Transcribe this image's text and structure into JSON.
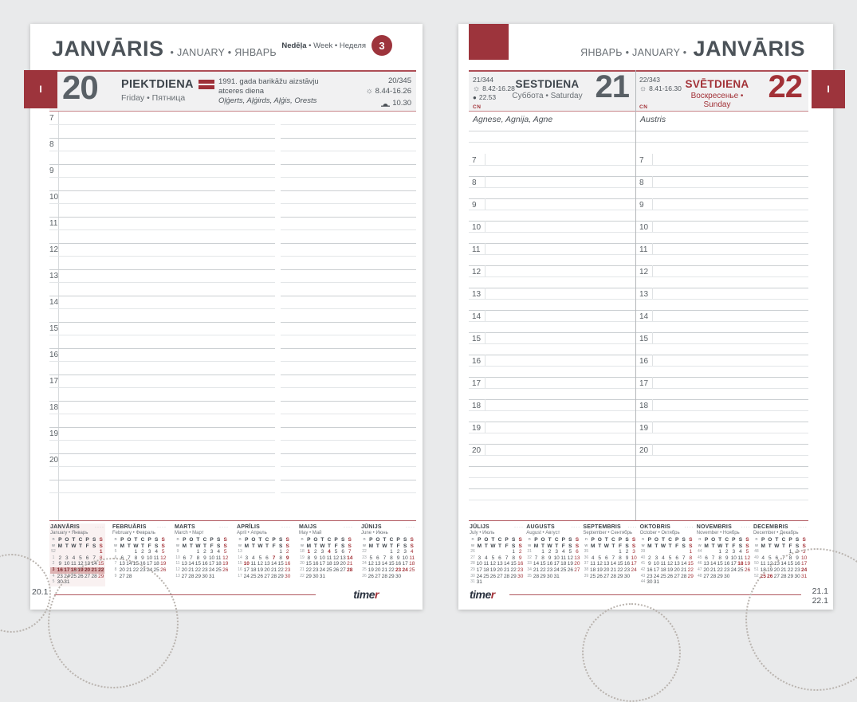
{
  "colors": {
    "accent": "#9d343c",
    "red_text": "#a23137",
    "band_bg": "#f1f1f2",
    "canvas_bg": "#e9eaeb"
  },
  "logo": {
    "main": "time",
    "accent": "r"
  },
  "week_header": {
    "lv": "Nedēļa",
    "en": "Week",
    "ru": "Неделя",
    "sep": "•",
    "number": "3"
  },
  "hours": [
    "7",
    "8",
    "9",
    "10",
    "11",
    "12",
    "13",
    "14",
    "15",
    "16",
    "17",
    "18",
    "19",
    "20"
  ],
  "left_page": {
    "tab": "I",
    "header": {
      "title": "JANVĀRIS",
      "subtitle": "• JANUARY • ЯНВАРЬ"
    },
    "day": {
      "number": "20",
      "name": "PIEKTDIENA",
      "name_sub": "Friday • Пятница",
      "holiday": "1991. gada barikāžu aizstāvju atceres diena",
      "namedays": "Oļģerts, Aļģirds, Aļģis, Orests",
      "day_of_year": "20/345",
      "sun": "8.44-16.26",
      "moon": "10.30"
    },
    "page_number": "20.1"
  },
  "right_page": {
    "tab": "I",
    "header": {
      "prefix": "ЯНВАРЬ • JANUARY •",
      "title": "JANVĀRIS"
    },
    "columns": [
      {
        "day_of_year": "21/344",
        "sun": "8.42-16.28",
        "moon": "22.53",
        "name": "SESTDIENA",
        "name_sub": "Суббота • Saturday",
        "number": "21",
        "corner": "CN",
        "namedays": "Agnese, Agnija, Agne"
      },
      {
        "day_of_year": "22/343",
        "sun": "8.41-16.30",
        "name": "SVĒTDIENA",
        "name_sub": "Воскресенье • Sunday",
        "number": "22",
        "corner": "CN",
        "namedays": "Austris"
      }
    ],
    "page_numbers": [
      "21.1",
      "22.1"
    ]
  },
  "minical": {
    "dow_lv": [
      "P",
      "O",
      "T",
      "C",
      "P",
      "S",
      "S"
    ],
    "dow_en": [
      "M",
      "T",
      "W",
      "T",
      "F",
      "S",
      "S"
    ],
    "week_col": [
      "n",
      "w"
    ],
    "left": [
      {
        "title": "JANVĀRIS",
        "subtitle": "January • Январь",
        "current": true,
        "hl_row": 3,
        "weeks": [
          "52",
          "1",
          "2",
          "3",
          "4",
          "5"
        ],
        "rows": [
          [
            "",
            "",
            "",
            "",
            "",
            "",
            "1"
          ],
          [
            "2",
            "3",
            "4",
            "5",
            "6",
            "7",
            "8"
          ],
          [
            "9",
            "10",
            "11",
            "12",
            "13",
            "14",
            "15"
          ],
          [
            "16",
            "17",
            "18",
            "19",
            "20",
            "21",
            "22"
          ],
          [
            "23",
            "24",
            "25",
            "26",
            "27",
            "28",
            "29"
          ],
          [
            "30",
            "31",
            "",
            "",
            "",
            "",
            ""
          ]
        ],
        "red": [
          1,
          8,
          15,
          22,
          29
        ],
        "bold": [
          1
        ]
      },
      {
        "title": "FEBRUĀRIS",
        "subtitle": "February • Февраль",
        "weeks": [
          "5",
          "6",
          "7",
          "8",
          "9"
        ],
        "rows": [
          [
            "",
            "",
            "1",
            "2",
            "3",
            "4",
            "5"
          ],
          [
            "6",
            "7",
            "8",
            "9",
            "10",
            "11",
            "12"
          ],
          [
            "13",
            "14",
            "15",
            "16",
            "17",
            "18",
            "19"
          ],
          [
            "20",
            "21",
            "22",
            "23",
            "24",
            "25",
            "26"
          ],
          [
            "27",
            "28",
            "",
            "",
            "",
            "",
            ""
          ]
        ],
        "red": [
          5,
          12,
          19,
          26
        ],
        "bold": []
      },
      {
        "title": "MARTS",
        "subtitle": "March • Март",
        "weeks": [
          "9",
          "10",
          "11",
          "12",
          "13"
        ],
        "rows": [
          [
            "",
            "",
            "1",
            "2",
            "3",
            "4",
            "5"
          ],
          [
            "6",
            "7",
            "8",
            "9",
            "10",
            "11",
            "12"
          ],
          [
            "13",
            "14",
            "15",
            "16",
            "17",
            "18",
            "19"
          ],
          [
            "20",
            "21",
            "22",
            "23",
            "24",
            "25",
            "26"
          ],
          [
            "27",
            "28",
            "29",
            "30",
            "31",
            "",
            ""
          ]
        ],
        "red": [
          5,
          12,
          19,
          26
        ],
        "bold": []
      },
      {
        "title": "APRĪLIS",
        "subtitle": "April • Апрель",
        "weeks": [
          "13",
          "14",
          "15",
          "16",
          "17"
        ],
        "rows": [
          [
            "",
            "",
            "",
            "",
            "",
            "1",
            "2"
          ],
          [
            "3",
            "4",
            "5",
            "6",
            "7",
            "8",
            "9"
          ],
          [
            "10",
            "11",
            "12",
            "13",
            "14",
            "15",
            "16"
          ],
          [
            "17",
            "18",
            "19",
            "20",
            "21",
            "22",
            "23"
          ],
          [
            "24",
            "25",
            "26",
            "27",
            "28",
            "29",
            "30"
          ]
        ],
        "red": [
          2,
          9,
          16,
          23,
          30
        ],
        "bold": [
          7,
          9,
          10
        ]
      },
      {
        "title": "MAIJS",
        "subtitle": "May • Май",
        "weeks": [
          "18",
          "19",
          "20",
          "21",
          "22"
        ],
        "rows": [
          [
            "1",
            "2",
            "3",
            "4",
            "5",
            "6",
            "7"
          ],
          [
            "8",
            "9",
            "10",
            "11",
            "12",
            "13",
            "14"
          ],
          [
            "15",
            "16",
            "17",
            "18",
            "19",
            "20",
            "21"
          ],
          [
            "22",
            "23",
            "24",
            "25",
            "26",
            "27",
            "28"
          ],
          [
            "29",
            "30",
            "31",
            "",
            "",
            "",
            ""
          ]
        ],
        "red": [
          7,
          14,
          21,
          28
        ],
        "bold": [
          1,
          4,
          14,
          28
        ]
      },
      {
        "title": "JŪNIJS",
        "subtitle": "June • Июнь",
        "weeks": [
          "22",
          "23",
          "24",
          "25",
          "26"
        ],
        "rows": [
          [
            "",
            "",
            "",
            "1",
            "2",
            "3",
            "4"
          ],
          [
            "5",
            "6",
            "7",
            "8",
            "9",
            "10",
            "11"
          ],
          [
            "12",
            "13",
            "14",
            "15",
            "16",
            "17",
            "18"
          ],
          [
            "19",
            "20",
            "21",
            "22",
            "23",
            "24",
            "25"
          ],
          [
            "26",
            "27",
            "28",
            "29",
            "30",
            "",
            ""
          ]
        ],
        "red": [
          4,
          11,
          18,
          25
        ],
        "bold": [
          23,
          24
        ]
      }
    ],
    "right": [
      {
        "title": "JŪLIJS",
        "subtitle": "July • Июль",
        "weeks": [
          "26",
          "27",
          "28",
          "29",
          "30",
          "31"
        ],
        "rows": [
          [
            "",
            "",
            "",
            "",
            "",
            "1",
            "2"
          ],
          [
            "3",
            "4",
            "5",
            "6",
            "7",
            "8",
            "9"
          ],
          [
            "10",
            "11",
            "12",
            "13",
            "14",
            "15",
            "16"
          ],
          [
            "17",
            "18",
            "19",
            "20",
            "21",
            "22",
            "23"
          ],
          [
            "24",
            "25",
            "26",
            "27",
            "28",
            "29",
            "30"
          ],
          [
            "31",
            "",
            "",
            "",
            "",
            "",
            ""
          ]
        ],
        "red": [
          2,
          9,
          16,
          23,
          30
        ],
        "bold": []
      },
      {
        "title": "AUGUSTS",
        "subtitle": "August • Август",
        "weeks": [
          "31",
          "32",
          "33",
          "34",
          "35"
        ],
        "rows": [
          [
            "",
            "1",
            "2",
            "3",
            "4",
            "5",
            "6"
          ],
          [
            "7",
            "8",
            "9",
            "10",
            "11",
            "12",
            "13"
          ],
          [
            "14",
            "15",
            "16",
            "17",
            "18",
            "19",
            "20"
          ],
          [
            "21",
            "22",
            "23",
            "24",
            "25",
            "26",
            "27"
          ],
          [
            "28",
            "29",
            "30",
            "31",
            "",
            "",
            ""
          ]
        ],
        "red": [
          6,
          13,
          20,
          27
        ],
        "bold": []
      },
      {
        "title": "SEPTEMBRIS",
        "subtitle": "September • Сентябрь",
        "weeks": [
          "35",
          "36",
          "37",
          "38",
          "39"
        ],
        "rows": [
          [
            "",
            "",
            "",
            "",
            "1",
            "2",
            "3"
          ],
          [
            "4",
            "5",
            "6",
            "7",
            "8",
            "9",
            "10"
          ],
          [
            "11",
            "12",
            "13",
            "14",
            "15",
            "16",
            "17"
          ],
          [
            "18",
            "19",
            "20",
            "21",
            "22",
            "23",
            "24"
          ],
          [
            "25",
            "26",
            "27",
            "28",
            "29",
            "30",
            ""
          ]
        ],
        "red": [
          3,
          10,
          17,
          24
        ],
        "bold": []
      },
      {
        "title": "OKTOBRIS",
        "subtitle": "October • Октябрь",
        "weeks": [
          "39",
          "40",
          "41",
          "42",
          "43",
          "44"
        ],
        "rows": [
          [
            "",
            "",
            "",
            "",
            "",
            "",
            "1"
          ],
          [
            "2",
            "3",
            "4",
            "5",
            "6",
            "7",
            "8"
          ],
          [
            "9",
            "10",
            "11",
            "12",
            "13",
            "14",
            "15"
          ],
          [
            "16",
            "17",
            "18",
            "19",
            "20",
            "21",
            "22"
          ],
          [
            "23",
            "24",
            "25",
            "26",
            "27",
            "28",
            "29"
          ],
          [
            "30",
            "31",
            "",
            "",
            "",
            "",
            ""
          ]
        ],
        "red": [
          1,
          8,
          15,
          22,
          29
        ],
        "bold": []
      },
      {
        "title": "NOVEMBRIS",
        "subtitle": "November • Ноябрь",
        "weeks": [
          "44",
          "45",
          "46",
          "47",
          "48"
        ],
        "rows": [
          [
            "",
            "",
            "1",
            "2",
            "3",
            "4",
            "5"
          ],
          [
            "6",
            "7",
            "8",
            "9",
            "10",
            "11",
            "12"
          ],
          [
            "13",
            "14",
            "15",
            "16",
            "17",
            "18",
            "19"
          ],
          [
            "20",
            "21",
            "22",
            "23",
            "24",
            "25",
            "26"
          ],
          [
            "27",
            "28",
            "29",
            "30",
            "",
            "",
            ""
          ]
        ],
        "red": [
          5,
          12,
          19,
          26
        ],
        "bold": [
          18
        ]
      },
      {
        "title": "DECEMBRIS",
        "subtitle": "December • Декабрь",
        "weeks": [
          "48",
          "49",
          "50",
          "51",
          "52"
        ],
        "rows": [
          [
            "",
            "",
            "",
            "",
            "1",
            "2",
            "3"
          ],
          [
            "4",
            "5",
            "6",
            "7",
            "8",
            "9",
            "10"
          ],
          [
            "11",
            "12",
            "13",
            "14",
            "15",
            "16",
            "17"
          ],
          [
            "18",
            "19",
            "20",
            "21",
            "22",
            "23",
            "24"
          ],
          [
            "25",
            "26",
            "27",
            "28",
            "29",
            "30",
            "31"
          ]
        ],
        "red": [
          3,
          10,
          17,
          24,
          31
        ],
        "bold": [
          24,
          25,
          26
        ]
      }
    ]
  }
}
